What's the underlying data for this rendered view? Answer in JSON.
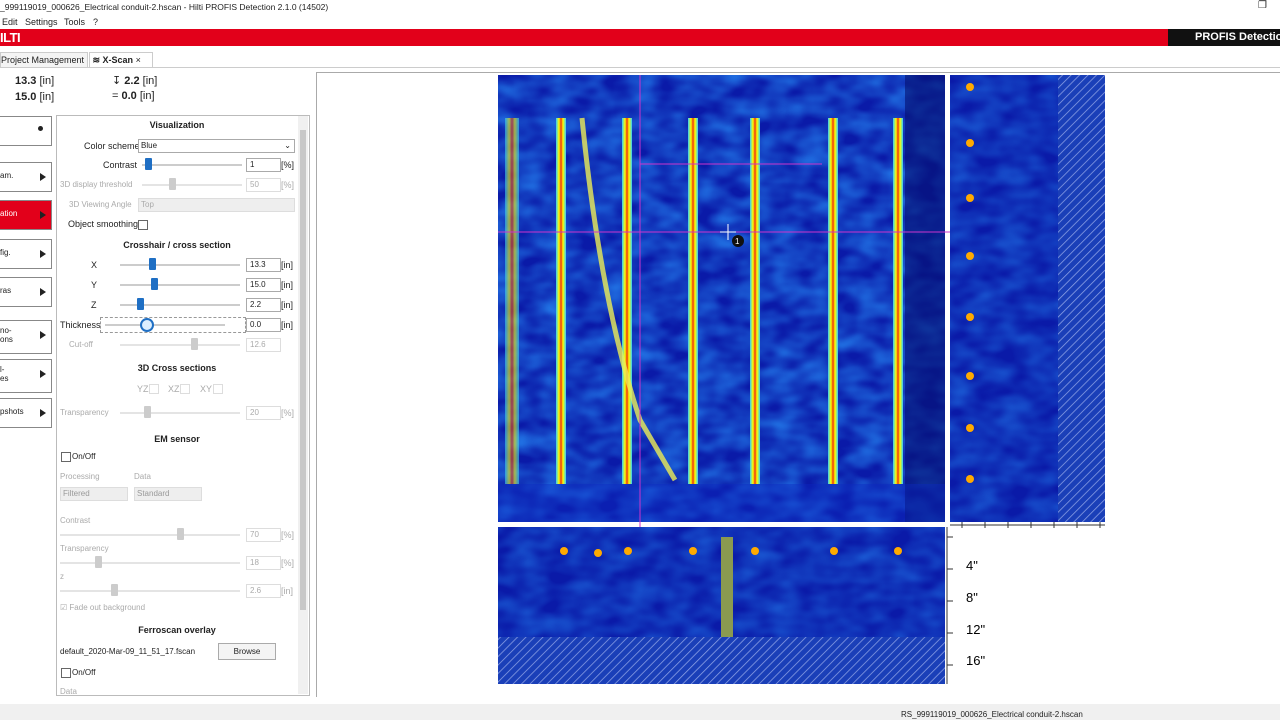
{
  "window": {
    "title": "_999119019_000626_Electrical conduit-2.hscan - Hilti PROFIS Detection 2.1.0 (14502)",
    "menu": [
      "Edit",
      "Settings",
      "Tools",
      "?"
    ]
  },
  "brand": {
    "logo": "ILTI",
    "product": "PROFIS Detectio"
  },
  "tabs": [
    "Project Management",
    "X-Scan"
  ],
  "coordinates": [
    {
      "value": "13.3",
      "unit": "[in]"
    },
    {
      "value": "2.2",
      "unit": "[in]"
    },
    {
      "value": "15.0",
      "unit": "[in]"
    },
    {
      "value": "0.0",
      "unit": "[in]"
    }
  ],
  "nav": [
    "am.",
    "ation",
    "fig.",
    "ras",
    "no-\nons",
    "l-\nes",
    "pshots"
  ],
  "panel": {
    "visualization": {
      "title": "Visualization",
      "color_scheme_label": "Color scheme",
      "color_scheme": "Blue",
      "contrast_label": "Contrast",
      "contrast": "1",
      "contrast_unit": "[%]",
      "threshold_label": "3D display threshold",
      "threshold": "50",
      "threshold_unit": "[%]",
      "angle_label": "3D Viewing Angle",
      "angle": "Top",
      "smoothing_label": "Object smoothing"
    },
    "crosshair": {
      "title": "Crosshair / cross section",
      "rows": [
        {
          "label": "X",
          "value": "13.3",
          "unit": "[in]"
        },
        {
          "label": "Y",
          "value": "15.0",
          "unit": "[in]"
        },
        {
          "label": "Z",
          "value": "2.2",
          "unit": "[in]"
        },
        {
          "label": "Thickness",
          "value": "0.0",
          "unit": "[in]"
        },
        {
          "label": "Cut-off",
          "value": "12.6"
        }
      ]
    },
    "cross_sections": {
      "title": "3D Cross sections",
      "planes": [
        "YZ",
        "XZ",
        "XY"
      ],
      "transparency_label": "Transparency",
      "transparency": "20",
      "transparency_unit": "[%]"
    },
    "em_sensor": {
      "title": "EM sensor",
      "onoff": "On/Off",
      "processing_label": "Processing",
      "processing": "Filtered",
      "data_label": "Data",
      "data": "Standard",
      "contrast_label": "Contrast",
      "contrast": "70",
      "contrast_unit": "[%]",
      "transparency_label": "Transparency",
      "transparency": "18",
      "transparency_unit": "[%]",
      "z_label": "z",
      "z": "2.6",
      "z_unit": "[in]",
      "fade": "Fade out background"
    },
    "ferroscan": {
      "title": "Ferroscan overlay",
      "file": "default_2020-Mar-09_11_51_17.fscan",
      "browse": "Browse",
      "onoff": "On/Off",
      "data_label": "Data"
    }
  },
  "scan": {
    "depth_labels": [
      "4\"",
      "8\"",
      "12\"",
      "16\""
    ]
  },
  "status": "RS_999119019_000626_Electrical conduit-2.hscan"
}
